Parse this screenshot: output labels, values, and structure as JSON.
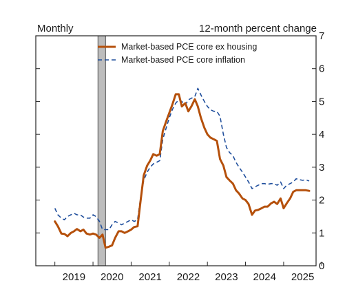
{
  "chart_data": {
    "type": "line",
    "left_note": "Monthly",
    "right_note": "12-month percent change",
    "ylim": [
      0,
      7
    ],
    "y_ticks": [
      0,
      1,
      2,
      3,
      4,
      5,
      6,
      7
    ],
    "x_range": [
      2018.5,
      2025.85
    ],
    "x_ticks": [
      2019,
      2020,
      2021,
      2022,
      2023,
      2024,
      2025
    ],
    "x_tick_labels": [
      "2019",
      "2020",
      "2021",
      "2022",
      "2023",
      "2024",
      "2025"
    ],
    "shaded_period": [
      2020.13,
      2020.33
    ],
    "legend_position": "top-center",
    "series": [
      {
        "name": "Market-based PCE core ex housing",
        "color": "#b5500b",
        "style": "solid",
        "x": [
          2019.0,
          2019.08,
          2019.17,
          2019.25,
          2019.33,
          2019.42,
          2019.5,
          2019.58,
          2019.67,
          2019.75,
          2019.83,
          2019.92,
          2020.0,
          2020.08,
          2020.17,
          2020.25,
          2020.33,
          2020.42,
          2020.5,
          2020.58,
          2020.67,
          2020.75,
          2020.83,
          2020.92,
          2021.0,
          2021.08,
          2021.17,
          2021.25,
          2021.33,
          2021.42,
          2021.5,
          2021.58,
          2021.67,
          2021.75,
          2021.83,
          2021.92,
          2022.0,
          2022.08,
          2022.17,
          2022.25,
          2022.33,
          2022.42,
          2022.5,
          2022.58,
          2022.67,
          2022.75,
          2022.83,
          2022.92,
          2023.0,
          2023.08,
          2023.17,
          2023.25,
          2023.33,
          2023.42,
          2023.5,
          2023.58,
          2023.67,
          2023.75,
          2023.83,
          2023.92,
          2024.0,
          2024.08,
          2024.17,
          2024.25,
          2024.33,
          2024.42,
          2024.5,
          2024.58,
          2024.67,
          2024.75,
          2024.83,
          2024.92,
          2025.0,
          2025.08,
          2025.17,
          2025.25,
          2025.33,
          2025.42,
          2025.5,
          2025.58,
          2025.67
        ],
        "y": [
          1.35,
          1.2,
          0.98,
          0.97,
          0.9,
          1.0,
          1.05,
          1.12,
          1.05,
          1.1,
          0.98,
          0.95,
          0.98,
          0.95,
          0.85,
          0.95,
          0.55,
          0.58,
          0.62,
          0.85,
          1.05,
          1.05,
          1.0,
          1.05,
          1.1,
          1.18,
          1.2,
          2.0,
          2.75,
          3.05,
          3.2,
          3.4,
          3.35,
          3.4,
          4.1,
          4.4,
          4.65,
          4.9,
          5.22,
          5.22,
          4.85,
          4.95,
          4.7,
          4.85,
          5.07,
          4.85,
          4.5,
          4.2,
          4.0,
          3.9,
          3.85,
          3.8,
          3.25,
          3.05,
          2.7,
          2.6,
          2.5,
          2.3,
          2.2,
          2.05,
          2.0,
          1.88,
          1.55,
          1.68,
          1.7,
          1.75,
          1.8,
          1.8,
          1.9,
          1.95,
          1.88,
          2.05,
          1.75,
          1.9,
          2.05,
          2.25,
          2.3,
          2.3,
          2.3,
          2.3,
          2.28
        ]
      },
      {
        "name": "Market-based PCE core inflation",
        "color": "#1f4e9c",
        "style": "dashed",
        "x": [
          2019.0,
          2019.08,
          2019.17,
          2019.25,
          2019.33,
          2019.42,
          2019.5,
          2019.58,
          2019.67,
          2019.75,
          2019.83,
          2019.92,
          2020.0,
          2020.08,
          2020.17,
          2020.25,
          2020.33,
          2020.42,
          2020.5,
          2020.58,
          2020.67,
          2020.75,
          2020.83,
          2020.92,
          2021.0,
          2021.08,
          2021.17,
          2021.25,
          2021.33,
          2021.42,
          2021.5,
          2021.58,
          2021.67,
          2021.75,
          2021.83,
          2021.92,
          2022.0,
          2022.08,
          2022.17,
          2022.25,
          2022.33,
          2022.42,
          2022.5,
          2022.58,
          2022.67,
          2022.75,
          2022.83,
          2022.92,
          2023.0,
          2023.08,
          2023.17,
          2023.25,
          2023.33,
          2023.42,
          2023.5,
          2023.58,
          2023.67,
          2023.75,
          2023.83,
          2023.92,
          2024.0,
          2024.08,
          2024.17,
          2024.25,
          2024.33,
          2024.42,
          2024.5,
          2024.58,
          2024.67,
          2024.75,
          2024.83,
          2024.92,
          2025.0,
          2025.08,
          2025.17,
          2025.25,
          2025.33,
          2025.42,
          2025.5,
          2025.58,
          2025.67
        ],
        "y": [
          1.75,
          1.55,
          1.45,
          1.4,
          1.5,
          1.55,
          1.6,
          1.55,
          1.55,
          1.48,
          1.45,
          1.45,
          1.55,
          1.5,
          1.35,
          1.1,
          1.1,
          1.1,
          1.25,
          1.35,
          1.3,
          1.25,
          1.3,
          1.35,
          1.4,
          1.35,
          1.4,
          2.1,
          2.6,
          2.85,
          3.0,
          3.1,
          3.15,
          3.2,
          3.85,
          4.2,
          4.5,
          4.75,
          4.95,
          5.05,
          5.0,
          4.9,
          5.05,
          5.1,
          5.15,
          5.4,
          5.2,
          5.0,
          4.85,
          4.75,
          4.7,
          4.7,
          4.55,
          4.0,
          3.6,
          3.45,
          3.35,
          3.15,
          3.0,
          2.85,
          2.7,
          2.55,
          2.35,
          2.4,
          2.45,
          2.5,
          2.5,
          2.48,
          2.5,
          2.5,
          2.45,
          2.55,
          2.35,
          2.45,
          2.5,
          2.55,
          2.65,
          2.62,
          2.6,
          2.62,
          2.58
        ]
      }
    ]
  }
}
